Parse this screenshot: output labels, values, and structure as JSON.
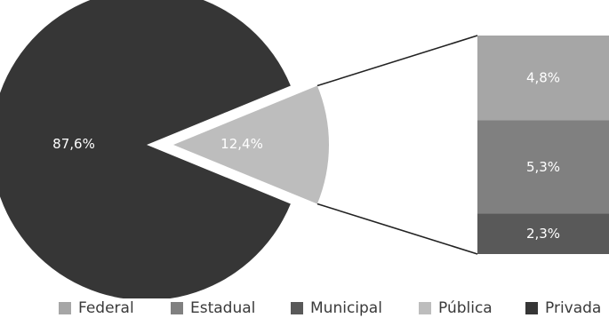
{
  "chart_data": {
    "type": "pie",
    "slices": [
      {
        "name": "Privada",
        "value": 87.6,
        "label": "87,6%",
        "color": "#363636"
      },
      {
        "name": "Pública",
        "value": 12.4,
        "label": "12,4%",
        "color": "#bdbdbd"
      }
    ],
    "breakdown_of": "Pública",
    "breakdown": [
      {
        "name": "Federal",
        "value": 4.8,
        "label": "4,8%",
        "color": "#a6a6a6"
      },
      {
        "name": "Estadual",
        "value": 5.3,
        "label": "5,3%",
        "color": "#808080"
      },
      {
        "name": "Municipal",
        "value": 2.3,
        "label": "2,3%",
        "color": "#595959"
      }
    ],
    "legend": [
      {
        "label": "Federal",
        "color": "#a6a6a6"
      },
      {
        "label": "Estadual",
        "color": "#808080"
      },
      {
        "label": "Municipal",
        "color": "#595959"
      },
      {
        "label": "Pública",
        "color": "#bdbdbd"
      },
      {
        "label": "Privada",
        "color": "#363636"
      }
    ],
    "legend_position": "bottom"
  }
}
